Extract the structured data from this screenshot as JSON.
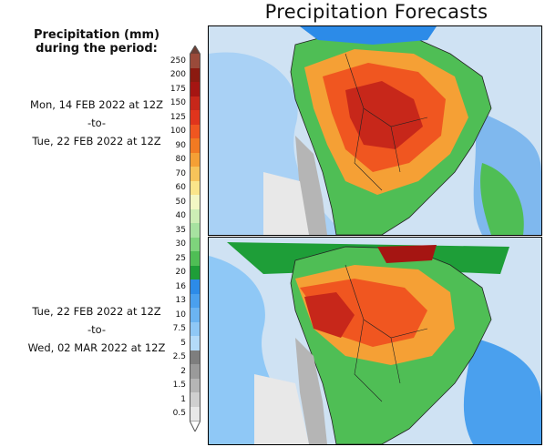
{
  "title": "Precipitation Forecasts",
  "legend": {
    "heading_line1": "Precipitation (mm)",
    "heading_line2": "during the period:",
    "levels": [
      "250",
      "200",
      "175",
      "150",
      "125",
      "100",
      "90",
      "80",
      "70",
      "60",
      "50",
      "40",
      "35",
      "30",
      "25",
      "20",
      "16",
      "13",
      "10",
      "7.5",
      "5",
      "2.5",
      "2",
      "1.5",
      "1",
      "0.5"
    ],
    "colors": [
      "#9a4a3a",
      "#8b1a10",
      "#a51512",
      "#c7271a",
      "#e0341c",
      "#f05620",
      "#f27a22",
      "#f5a035",
      "#f7c45a",
      "#fae58a",
      "#f3f7c4",
      "#cdeeb5",
      "#a7e2a0",
      "#7ed47c",
      "#4fbe55",
      "#1e9e38",
      "#2c8be8",
      "#4aa0ee",
      "#6bb4f2",
      "#8fc8f6",
      "#b4dbf9",
      "#7e7e7e",
      "#9a9a9a",
      "#b5b5b5",
      "#cfcfcf",
      "#e8e8e8"
    ],
    "top_arrow_color": "#6e3e34",
    "bottom_arrow_color": "#ffffff"
  },
  "periods": [
    {
      "start": "Mon, 14 FEB 2022 at 12Z",
      "sep": "-to-",
      "end": "Tue, 22 FEB 2022 at 12Z"
    },
    {
      "start": "Tue, 22 FEB 2022 at 12Z",
      "sep": "-to-",
      "end": "Wed, 02 MAR 2022 at 12Z"
    }
  ],
  "maps": [
    {
      "name": "forecast-map-period-1",
      "region": "South America"
    },
    {
      "name": "forecast-map-period-2",
      "region": "South America"
    }
  ]
}
